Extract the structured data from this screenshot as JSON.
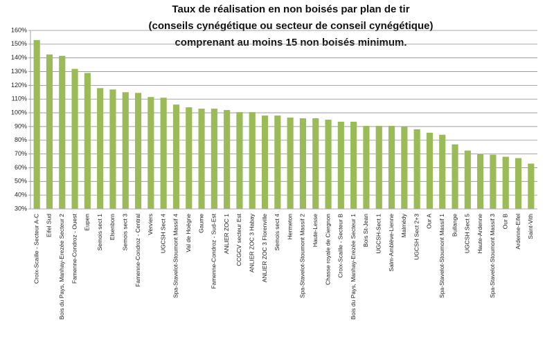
{
  "chart_data": {
    "type": "bar",
    "title": [
      "Taux de réalisation en non boisés par plan de tir",
      "(conseils cynégétique ou secteur de conseil cynégétique)",
      "comprenant au moins 15 non boisés  minimum."
    ],
    "categories": [
      "Croix-Scaille - Secteur A-C",
      "Eifel Sud",
      "Bois du Pays, Manhay-Erezée  Secteur 2",
      "Famenne-Condroz - Ouest",
      "Eupen",
      "Semois  sect 1",
      "Elsenborn",
      "Semois sect 3",
      "Famenne-Condroz - Central",
      "Verviers",
      "UGCSH Sect 4",
      "Spa-Stavelot-Stoumont Massif 4",
      "Val de Hoëgne",
      "Gaume",
      "Famenne-Condroz - Sud-Est",
      "ANLIER ZOC 1",
      "CCGCV secteur Est",
      "ANLIER ZOC 3 Habay",
      "ANLIER ZOC 3 Florenville",
      "Semois sect 4",
      "Hermeton",
      "Spa-Stavelot-Stoumont  Massif 2",
      "Haute-Lesse",
      "Chasse royale de Ciergnon",
      "Croix-Scaille - Secteur B",
      "Bois du Pays, Manhay-Erezée  Secteur 1",
      "Bois St-Jean",
      "UGCSH-Sect 1",
      "Salm-Amblève-Lienne",
      "Malmédy",
      "UGCSH Sect 2+3",
      "Our A",
      "Spa-Stavelot-Stoumont  Massif 1",
      "Bullange",
      "UGCSH Sect 5",
      "Haute-Ardenne",
      "Spa-Stavelot-Stoumont  Massif 3",
      "Our B",
      "Ardenne-Eifel",
      "Saint-Vith"
    ],
    "values": [
      153,
      142.5,
      141.5,
      132,
      129,
      118,
      117,
      115,
      114.5,
      111.5,
      111,
      106,
      104,
      103,
      103,
      102,
      100.5,
      100.5,
      98,
      98,
      96.5,
      96,
      96,
      95,
      93.5,
      93.5,
      90.5,
      90.5,
      90.5,
      90,
      88,
      85.5,
      84,
      77,
      72.5,
      70,
      69.5,
      68,
      67,
      63
    ],
    "color": "#9bbb59",
    "ylim": [
      30,
      160
    ],
    "yticks": [
      {
        "value": 30,
        "label": "30%"
      },
      {
        "value": 40,
        "label": "40%"
      },
      {
        "value": 50,
        "label": "50%"
      },
      {
        "value": 60,
        "label": "60%"
      },
      {
        "value": 70,
        "label": "70%"
      },
      {
        "value": 80,
        "label": "80%"
      },
      {
        "value": 90,
        "label": "90%"
      },
      {
        "value": 100,
        "label": "100%"
      },
      {
        "value": 110,
        "label": "110%"
      },
      {
        "value": 120,
        "label": "120%"
      },
      {
        "value": 130,
        "label": "130%"
      },
      {
        "value": 140,
        "label": "140%"
      },
      {
        "value": 150,
        "label": "150%"
      },
      {
        "value": 160,
        "label": "160%"
      }
    ],
    "grid": true
  }
}
